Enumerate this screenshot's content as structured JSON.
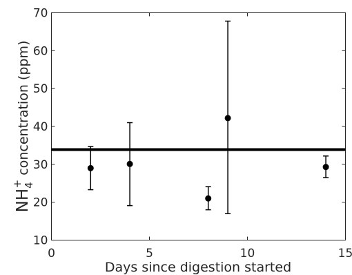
{
  "chart_data": {
    "type": "scatter",
    "xlabel": "Days since digestion started",
    "ylabel": {
      "species": "NH",
      "subscript": "4",
      "superscript": "+",
      "text": " concentration (ppm)"
    },
    "xlim": [
      0,
      15
    ],
    "ylim": [
      10,
      70
    ],
    "x_ticks": [
      0,
      5,
      10,
      15
    ],
    "y_ticks": [
      10,
      20,
      30,
      40,
      50,
      60,
      70
    ],
    "grid": false,
    "points": [
      {
        "x": 2,
        "y": 29.0,
        "err_low": 23.3,
        "err_high": 34.7
      },
      {
        "x": 4,
        "y": 30.1,
        "err_low": 19.1,
        "err_high": 41.0
      },
      {
        "x": 8,
        "y": 21.0,
        "err_low": 18.0,
        "err_high": 24.1
      },
      {
        "x": 9,
        "y": 42.2,
        "err_low": 17.0,
        "err_high": 67.8
      },
      {
        "x": 14,
        "y": 29.3,
        "err_low": 26.5,
        "err_high": 32.2
      }
    ],
    "reference_line": {
      "y": 33.9
    },
    "colors": {
      "marker": "#000000",
      "axis": "#262626",
      "reference_line": "#000000"
    }
  }
}
